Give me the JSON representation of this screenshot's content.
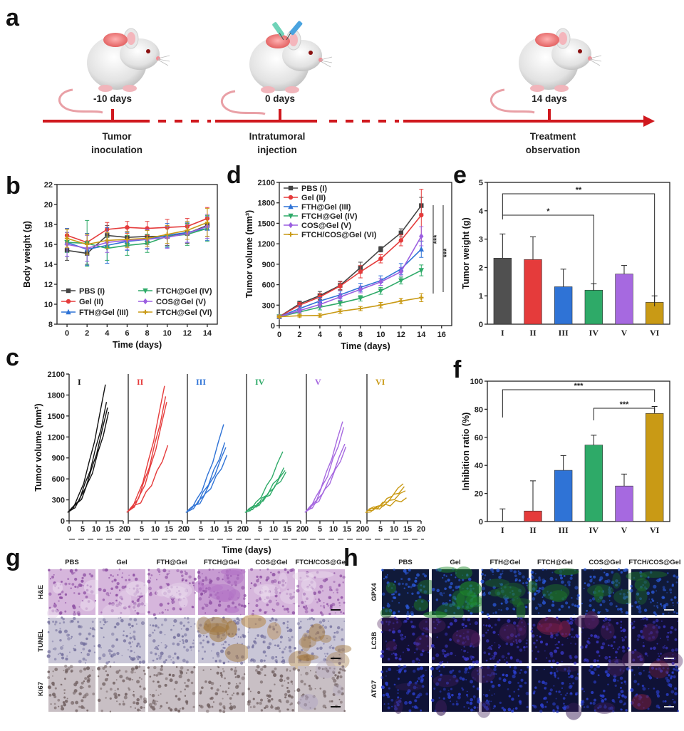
{
  "panels": {
    "a": "a",
    "b": "b",
    "c": "c",
    "d": "d",
    "e": "e",
    "f": "f",
    "g": "g",
    "h": "h"
  },
  "timeline": {
    "events": [
      {
        "day": "-10 days",
        "label1": "Tumor",
        "label2": "inoculation"
      },
      {
        "day": "0 days",
        "label1": "Intratumoral",
        "label2": "injection"
      },
      {
        "day": "14 days",
        "label1": "Treatment",
        "label2": "observation"
      }
    ],
    "color": "#d0181e"
  },
  "chart_data": [
    {
      "panel": "b",
      "type": "line",
      "xlabel": "Time (days)",
      "ylabel": "Body weight (g)",
      "xlim": [
        -1,
        15
      ],
      "ylim": [
        8,
        22
      ],
      "xticks": [
        "0",
        "2",
        "4",
        "6",
        "8",
        "10",
        "12",
        "14"
      ],
      "yticks": [
        "8",
        "10",
        "12",
        "14",
        "16",
        "18",
        "20",
        "22"
      ],
      "x": [
        0,
        2,
        4,
        6,
        8,
        10,
        12,
        14
      ],
      "series": [
        {
          "name": "PBS (I)",
          "color": "#444444",
          "marker": "square",
          "values": [
            15.4,
            15.1,
            16.9,
            16.7,
            16.8,
            16.8,
            17.1,
            17.9
          ],
          "err": [
            1.0,
            1.1,
            1.0,
            0.9,
            0.8,
            0.9,
            1.0,
            1.1
          ]
        },
        {
          "name": "Gel  (II)",
          "color": "#e53b3b",
          "marker": "circle",
          "values": [
            16.9,
            16.2,
            17.5,
            17.7,
            17.6,
            17.7,
            17.8,
            18.6
          ],
          "err": [
            0.7,
            0.9,
            0.7,
            0.6,
            0.7,
            0.8,
            0.8,
            1.1
          ]
        },
        {
          "name": "FTH@Gel  (III)",
          "color": "#2f73d6",
          "marker": "triangle",
          "values": [
            16.2,
            15.5,
            15.9,
            16.3,
            16.5,
            16.9,
            17.2,
            17.6
          ],
          "err": [
            1.4,
            1.6,
            1.8,
            0.9,
            0.9,
            1.2,
            1.0,
            1.2
          ]
        },
        {
          "name": "FTCH@Gel (IV)",
          "color": "#2eaa68",
          "marker": "tri-down",
          "values": [
            16.2,
            16.1,
            15.6,
            15.9,
            16.1,
            16.8,
            17.0,
            17.6
          ],
          "err": [
            1.0,
            2.3,
            1.2,
            1.0,
            0.9,
            1.0,
            1.1,
            1.3
          ]
        },
        {
          "name": "COS@Gel     (V)",
          "color": "#9b5ee0",
          "marker": "diamond",
          "values": [
            16.0,
            15.6,
            16.2,
            16.4,
            16.5,
            16.7,
            17.1,
            17.8
          ],
          "err": [
            1.2,
            1.3,
            1.0,
            0.9,
            1.0,
            1.1,
            0.9,
            1.2
          ]
        },
        {
          "name": "FTCH@Gel (VI)",
          "color": "#c99a15",
          "marker": "cross",
          "values": [
            16.6,
            16.0,
            16.4,
            16.5,
            16.6,
            17.0,
            17.4,
            18.2
          ],
          "err": [
            0.9,
            1.0,
            0.8,
            0.8,
            0.8,
            0.9,
            0.9,
            1.4
          ]
        }
      ]
    },
    {
      "panel": "d",
      "type": "line",
      "xlabel": "Time (days)",
      "ylabel": "Tumor volume (mm³)",
      "xlim": [
        0,
        17
      ],
      "ylim": [
        0,
        2100
      ],
      "xticks": [
        "0",
        "2",
        "4",
        "6",
        "8",
        "10",
        "12",
        "14",
        "16"
      ],
      "yticks": [
        "0",
        "300",
        "600",
        "900",
        "1200",
        "1500",
        "1800",
        "2100"
      ],
      "x": [
        0,
        2,
        4,
        6,
        8,
        10,
        12,
        14
      ],
      "significance": [
        "***",
        "***"
      ],
      "series": [
        {
          "name": "PBS (I)",
          "color": "#444444",
          "marker": "square",
          "values": [
            130,
            320,
            440,
            590,
            850,
            1120,
            1360,
            1760
          ],
          "err": [
            20,
            40,
            60,
            60,
            80,
            40,
            60,
            120
          ]
        },
        {
          "name": "Gel  (II)",
          "color": "#e53b3b",
          "marker": "circle",
          "values": [
            130,
            300,
            420,
            580,
            790,
            980,
            1250,
            1620
          ],
          "err": [
            20,
            40,
            50,
            60,
            90,
            60,
            80,
            380
          ]
        },
        {
          "name": "FTH@Gel (III)",
          "color": "#2f73d6",
          "marker": "triangle",
          "values": [
            130,
            250,
            360,
            450,
            560,
            660,
            830,
            1120
          ],
          "err": [
            20,
            40,
            50,
            60,
            60,
            70,
            80,
            120
          ]
        },
        {
          "name": "FTCH@Gel (IV)",
          "color": "#2eaa68",
          "marker": "tri-down",
          "values": [
            130,
            200,
            270,
            330,
            400,
            510,
            660,
            810
          ],
          "err": [
            20,
            30,
            40,
            40,
            40,
            50,
            50,
            80
          ]
        },
        {
          "name": "COS@Gel (V)",
          "color": "#9b5ee0",
          "marker": "diamond",
          "values": [
            130,
            220,
            310,
            420,
            530,
            640,
            790,
            1310
          ],
          "err": [
            20,
            30,
            40,
            50,
            50,
            50,
            60,
            140
          ]
        },
        {
          "name": "FTCH/COS@Gel (VI)",
          "color": "#c99a15",
          "marker": "cross",
          "values": [
            130,
            145,
            150,
            210,
            250,
            300,
            360,
            410
          ],
          "err": [
            15,
            20,
            25,
            30,
            30,
            40,
            40,
            60
          ]
        }
      ]
    },
    {
      "panel": "e",
      "type": "bar",
      "ylabel": "Tumor weight (g)",
      "ylim": [
        0,
        5
      ],
      "yticks": [
        "0",
        "1",
        "2",
        "3",
        "4",
        "5"
      ],
      "categories": [
        "I",
        "II",
        "III",
        "IV",
        "V",
        "VI"
      ],
      "values": [
        2.33,
        2.28,
        1.32,
        1.2,
        1.77,
        0.77
      ],
      "err": [
        0.85,
        0.8,
        0.62,
        0.23,
        0.3,
        0.23
      ],
      "colors": [
        "#505050",
        "#e53b3b",
        "#2f73d6",
        "#2eaa68",
        "#a669e0",
        "#c99a15"
      ],
      "significance": [
        {
          "from": "I",
          "to": "IV",
          "label": "*"
        },
        {
          "from": "I",
          "to": "VI",
          "label": "**"
        }
      ]
    },
    {
      "panel": "f",
      "type": "bar",
      "ylabel": "Inhibition ratio (%)",
      "ylim": [
        0,
        100
      ],
      "yticks": [
        "0",
        "20",
        "40",
        "60",
        "80",
        "100"
      ],
      "categories": [
        "I",
        "II",
        "III",
        "IV",
        "V",
        "VI"
      ],
      "values": [
        0,
        7.5,
        36.5,
        54.5,
        25.3,
        77
      ],
      "err": [
        9,
        21.5,
        10.5,
        7,
        8.5,
        5
      ],
      "colors": [
        "#505050",
        "#e53b3b",
        "#2f73d6",
        "#2eaa68",
        "#a669e0",
        "#c99a15"
      ],
      "significance": [
        {
          "from": "I",
          "to": "VI",
          "label": "***"
        },
        {
          "from": "IV",
          "to": "VI",
          "label": "***"
        }
      ]
    },
    {
      "panel": "c",
      "type": "line",
      "xlabel": "Time (days)",
      "ylabel": "Tumor volume (mm³)",
      "ylim": [
        0,
        2100
      ],
      "yticks": [
        "0",
        "300",
        "600",
        "900",
        "1200",
        "1500",
        "1800",
        "2100"
      ],
      "xticks": [
        "0",
        "5",
        "10",
        "15",
        "20"
      ],
      "groups": [
        {
          "name": "I",
          "color": "#111111",
          "finals": [
            1950,
            1700,
            1620,
            1560
          ]
        },
        {
          "name": "II",
          "color": "#e53b3b",
          "finals": [
            1930,
            1780,
            1700,
            1080
          ]
        },
        {
          "name": "III",
          "color": "#2f73d6",
          "finals": [
            1380,
            1120,
            1050,
            940
          ]
        },
        {
          "name": "IV",
          "color": "#2eaa68",
          "finals": [
            990,
            760,
            720,
            700
          ]
        },
        {
          "name": "V",
          "color": "#a669e0",
          "finals": [
            1420,
            1340,
            1100,
            1060
          ]
        },
        {
          "name": "VI",
          "color": "#c99a15",
          "finals": [
            530,
            490,
            430,
            330
          ]
        }
      ]
    }
  ],
  "microscopy_g": {
    "columns": [
      "PBS",
      "Gel",
      "FTH@Gel",
      "FTCH@Gel",
      "COS@Gel",
      "FTCH/COS@Gel"
    ],
    "rows": [
      "H&E",
      "TUNEL",
      "Ki67"
    ]
  },
  "microscopy_h": {
    "columns": [
      "PBS",
      "Gel",
      "FTH@Gel",
      "FTCH@Gel",
      "COS@Gel",
      "FTCH/COS@Gel"
    ],
    "rows": [
      "GPX4",
      "LC3B",
      "ATG7"
    ]
  }
}
